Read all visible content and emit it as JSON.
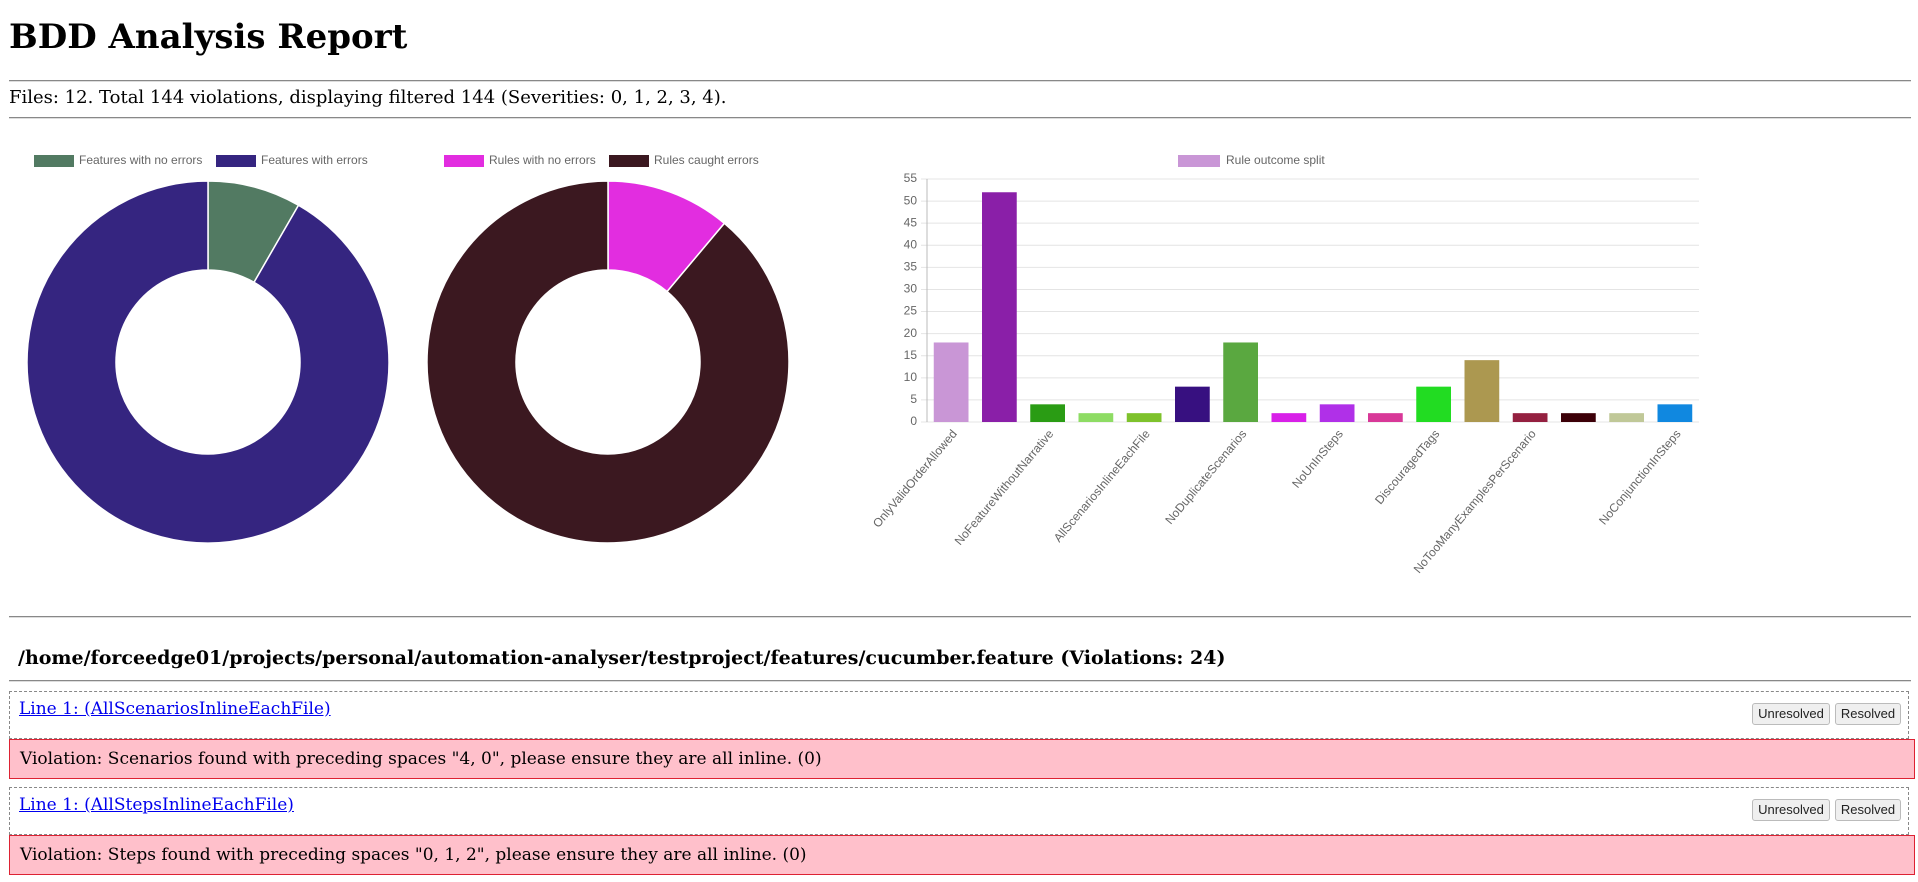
{
  "header": {
    "title": "BDD Analysis Report",
    "summary": "Files: 12. Total 144 violations, displaying filtered 144 (Severities: 0, 1, 2, 3, 4)."
  },
  "chart_data": [
    {
      "type": "doughnut",
      "categories": [
        "Features with no errors",
        "Features with errors"
      ],
      "values": [
        1,
        11
      ],
      "colors": [
        "#527a62",
        "#352580"
      ]
    },
    {
      "type": "doughnut",
      "categories": [
        "Rules with no errors",
        "Rules caught errors"
      ],
      "values": [
        2,
        16
      ],
      "colors": [
        "#e22de0",
        "#3b1820"
      ]
    },
    {
      "type": "bar",
      "categories": [
        "OnlyValidOrderAllowed",
        null,
        "NoFeatureWithoutNarrative",
        null,
        "AllScenariosInlineEachFile",
        null,
        "NoDuplicateScenarios",
        null,
        "NoUnInSteps",
        null,
        "DiscouragedTags",
        null,
        "NoTooManyExamplesPerScenario",
        null,
        null,
        "NoConjunctionInSteps"
      ],
      "series": [
        {
          "name": "Rule outcome split",
          "colors": [
            "#c996d6",
            "#8a1fa8",
            "#2a9c14",
            "#8edc64",
            "#7ec22c",
            "#371080",
            "#5aa840",
            "#d820e8",
            "#b030e8",
            "#d83898",
            "#22dc22",
            "#ac9850",
            "#942040",
            "#3c0008",
            "#c0c898",
            "#1088e0"
          ],
          "values": [
            18,
            52,
            4,
            2,
            2,
            8,
            18,
            2,
            4,
            2,
            8,
            14,
            2,
            2,
            2,
            4
          ]
        }
      ],
      "ylim": [
        0,
        55
      ],
      "yticks": [
        0,
        5,
        10,
        15,
        20,
        25,
        30,
        35,
        40,
        45,
        50,
        55
      ],
      "grid": true
    }
  ],
  "file": {
    "heading": "/home/forceedge01/projects/personal/automation-analyser/testproject/features/cucumber.feature (Violations: 24)",
    "violations": [
      {
        "link": "Line 1: (AllScenariosInlineEachFile)",
        "message": "Violation: Scenarios found with preceding spaces \"4, 0\", please ensure they are all inline. (0)",
        "buttons": [
          "Unresolved",
          "Resolved"
        ]
      },
      {
        "link": "Line 1: (AllStepsInlineEachFile)",
        "message": "Violation: Steps found with preceding spaces \"0, 1, 2\", please ensure they are all inline. (0)",
        "buttons": [
          "Unresolved",
          "Resolved"
        ]
      }
    ]
  }
}
